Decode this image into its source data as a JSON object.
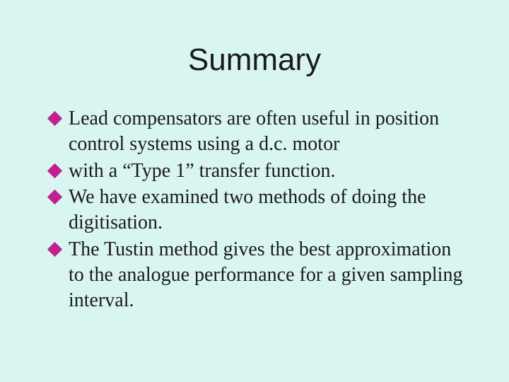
{
  "slide": {
    "background_color": "#d9f5f2",
    "title": "Summary",
    "title_fontsize": 44,
    "title_color": "#1a1a1a",
    "bullet_color": "#c02090",
    "text_color": "#1a1a1a",
    "text_fontsize": 28,
    "bullets": [
      {
        "text": "Lead compensators are often useful in position control systems using a d.c. motor"
      },
      {
        "text": "with a “Type 1” transfer function."
      },
      {
        "text": "We have examined two methods of doing the digitisation."
      },
      {
        "text": "The Tustin method gives the best approximation to the analogue performance for a given sampling interval."
      }
    ]
  }
}
